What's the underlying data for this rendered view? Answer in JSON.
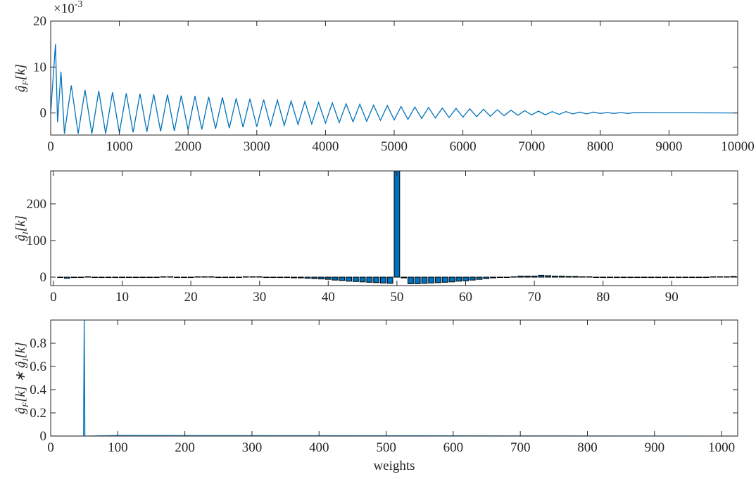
{
  "chart_data": [
    {
      "type": "line",
      "ylabel": [
        [
          "ĝ",
          "F",
          "[k]"
        ]
      ],
      "y_exponent_base": "×10",
      "y_exponent": "-3",
      "x": [
        0,
        70,
        100,
        150,
        200,
        300,
        400,
        500,
        600,
        700,
        800,
        900,
        1000,
        1100,
        1200,
        1300,
        1400,
        1500,
        1600,
        1700,
        1800,
        1900,
        2000,
        2100,
        2200,
        2300,
        2400,
        2500,
        2600,
        2700,
        2800,
        2900,
        3000,
        3100,
        3200,
        3300,
        3400,
        3500,
        3600,
        3700,
        3800,
        3900,
        4000,
        4100,
        4200,
        4300,
        4400,
        4500,
        4600,
        4700,
        4800,
        4900,
        5000,
        5100,
        5200,
        5300,
        5400,
        5500,
        5600,
        5700,
        5800,
        5900,
        6000,
        6100,
        6200,
        6300,
        6400,
        6500,
        6600,
        6700,
        6800,
        6900,
        7000,
        7100,
        7200,
        7300,
        7400,
        7500,
        7600,
        7700,
        7800,
        7900,
        8000,
        8100,
        8200,
        8300,
        8400,
        8500,
        10000
      ],
      "values": [
        0,
        15,
        -2,
        9,
        -4.5,
        6,
        -4.5,
        5,
        -4.5,
        4.8,
        -4.5,
        4.5,
        -4.3,
        4.3,
        -4.2,
        4.2,
        -4.1,
        4.1,
        -4,
        4,
        -3.9,
        3.8,
        -3.7,
        3.7,
        -3.6,
        3.5,
        -3.4,
        3.4,
        -3.3,
        3.2,
        -3.1,
        3.1,
        -3,
        2.9,
        -2.8,
        2.8,
        -2.7,
        2.6,
        -2.5,
        2.5,
        -2.4,
        2.3,
        -2.2,
        2.2,
        -2.1,
        2,
        -1.9,
        1.9,
        -1.8,
        1.7,
        -1.6,
        1.6,
        -1.5,
        1.4,
        -1.4,
        1.3,
        -1.2,
        1.2,
        -1.1,
        1.1,
        -1,
        1,
        -0.9,
        0.9,
        -0.8,
        0.8,
        -0.7,
        0.7,
        -0.6,
        0.6,
        -0.5,
        0.5,
        -0.4,
        0.4,
        -0.4,
        0.3,
        -0.3,
        0.3,
        -0.2,
        0.2,
        -0.2,
        0.2,
        -0.1,
        0.1,
        -0.1,
        0.1,
        -0.1,
        0.1,
        0
      ],
      "color": "#0072bd",
      "xlim": [
        0,
        10000
      ],
      "xticks": [
        0,
        1000,
        2000,
        3000,
        4000,
        5000,
        6000,
        7000,
        8000,
        9000,
        10000
      ],
      "ylim": [
        -4.8,
        20
      ],
      "yticks": [
        0,
        10,
        20
      ]
    },
    {
      "type": "bar",
      "ylabel": [
        [
          "ĝ",
          "I",
          "[k]"
        ]
      ],
      "x": [
        1,
        2,
        3,
        4,
        5,
        6,
        7,
        8,
        9,
        10,
        11,
        12,
        13,
        14,
        15,
        16,
        17,
        18,
        19,
        20,
        21,
        22,
        23,
        24,
        25,
        26,
        27,
        28,
        29,
        30,
        31,
        32,
        33,
        34,
        35,
        36,
        37,
        38,
        39,
        40,
        41,
        42,
        43,
        44,
        45,
        46,
        47,
        48,
        49,
        50,
        51,
        52,
        53,
        54,
        55,
        56,
        57,
        58,
        59,
        60,
        61,
        62,
        63,
        64,
        65,
        66,
        67,
        68,
        69,
        70,
        71,
        72,
        73,
        74,
        75,
        76,
        77,
        78,
        79,
        80,
        81,
        82,
        83,
        84,
        85,
        86,
        87,
        88,
        89,
        90,
        91,
        92,
        93,
        94,
        95,
        96,
        97,
        98,
        99
      ],
      "values": [
        0,
        -3,
        -1,
        0,
        1,
        0,
        -1,
        -1,
        0,
        0,
        0,
        -1,
        -1,
        0,
        0,
        1,
        1,
        0,
        -1,
        -1,
        1,
        1,
        1,
        0,
        0,
        0,
        0,
        1,
        1,
        1,
        0,
        0,
        -1,
        -1,
        -2,
        -2,
        -3,
        -4,
        -5,
        -6,
        -8,
        -9,
        -11,
        -12,
        -13,
        -14,
        -15,
        -16,
        -17,
        290,
        -2,
        -18,
        -18,
        -17,
        -16,
        -15,
        -14,
        -13,
        -11,
        -10,
        -8,
        -6,
        -4,
        -2,
        -1,
        0,
        1,
        3,
        3,
        3,
        5,
        4,
        3,
        3,
        2,
        2,
        1,
        1,
        0,
        0,
        0,
        -1,
        -1,
        -1,
        -1,
        -1,
        -1,
        -1,
        0,
        0,
        0,
        0,
        -1,
        -1,
        0,
        1,
        1,
        1,
        2
      ],
      "color": "#0072bd",
      "xlim": [
        -0.4,
        99.6
      ],
      "xticks": [
        0,
        10,
        20,
        30,
        40,
        50,
        60,
        70,
        80,
        90
      ],
      "ylim": [
        -23,
        290
      ],
      "yticks": [
        0,
        100,
        200
      ]
    },
    {
      "type": "line",
      "ylabel": [
        [
          "ĝ",
          "F",
          "[k] ∗ "
        ],
        [
          "ĝ",
          "I",
          "[k]"
        ]
      ],
      "xlabel": "weights",
      "x": [
        0,
        49,
        50,
        51,
        100,
        1024
      ],
      "values": [
        0,
        0,
        1,
        0,
        0.005,
        0
      ],
      "color": "#0072bd",
      "xlim": [
        0,
        1024
      ],
      "xticks": [
        0,
        100,
        200,
        300,
        400,
        500,
        600,
        700,
        800,
        900,
        1000
      ],
      "ylim": [
        0,
        1
      ],
      "yticks": [
        0,
        0.2,
        0.4,
        0.6,
        0.8
      ]
    }
  ]
}
